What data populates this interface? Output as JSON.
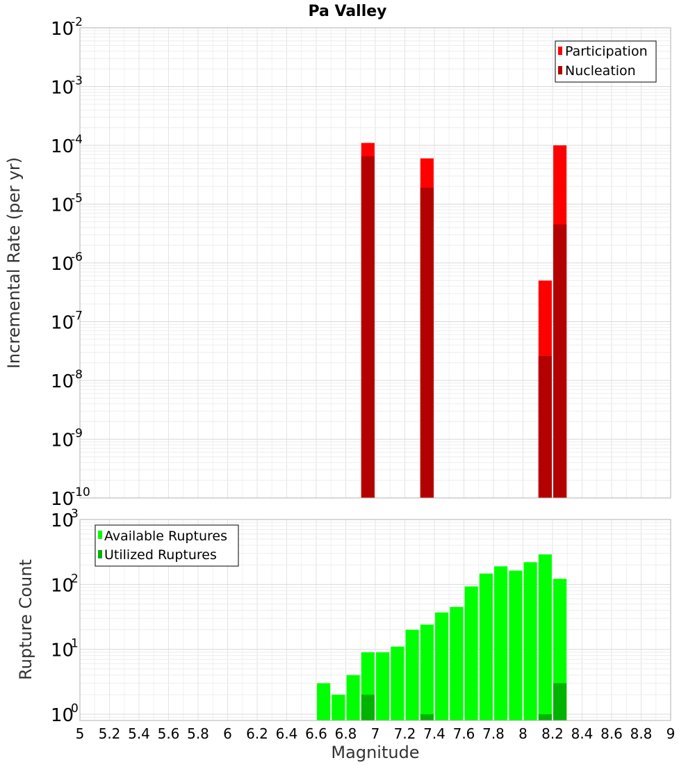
{
  "chart_data": [
    {
      "type": "bar",
      "title": "Pa Valley",
      "ylabel": "Incremental Rate (per yr)",
      "xlabel": "",
      "y_scale": "log",
      "ylim": [
        1e-10,
        0.01
      ],
      "xlim": [
        5,
        9
      ],
      "y_tick_exponents": [
        -2,
        -3,
        -4,
        -5,
        -6,
        -7,
        -8,
        -9,
        -10
      ],
      "legend": {
        "placement": "top-right",
        "entries": [
          {
            "label": "Participation",
            "color": "#ff0000"
          },
          {
            "label": "Nucleation",
            "color": "#b30000"
          }
        ]
      },
      "bar_width": 0.09,
      "series": [
        {
          "name": "Participation",
          "color": "#ff0000",
          "x": [
            6.95,
            7.35,
            8.15,
            8.25
          ],
          "values": [
            0.00011,
            6e-05,
            5e-07,
            0.0001
          ]
        },
        {
          "name": "Nucleation",
          "color": "#b30000",
          "x": [
            6.95,
            7.35,
            8.15,
            8.25
          ],
          "values": [
            6.5e-05,
            1.9e-05,
            2.6e-08,
            4.5e-06
          ]
        }
      ]
    },
    {
      "type": "bar",
      "title": "",
      "ylabel": "Rupture Count",
      "xlabel": "Magnitude",
      "y_scale": "log",
      "ylim": [
        0.8,
        1000
      ],
      "xlim": [
        5,
        9
      ],
      "y_tick_exponents": [
        3,
        2,
        1,
        0
      ],
      "x_ticks": [
        "5",
        "5.2",
        "5.4",
        "5.6",
        "5.8",
        "6",
        "6.2",
        "6.4",
        "6.6",
        "6.8",
        "7",
        "7.2",
        "7.4",
        "7.6",
        "7.8",
        "8",
        "8.2",
        "8.4",
        "8.6",
        "8.8",
        "9"
      ],
      "legend": {
        "placement": "top-left",
        "entries": [
          {
            "label": "Available Ruptures",
            "color": "#00ff00"
          },
          {
            "label": "Utilized Ruptures",
            "color": "#00b300"
          }
        ]
      },
      "bar_width": 0.09,
      "series": [
        {
          "name": "Available Ruptures",
          "color": "#00ff00",
          "x": [
            6.65,
            6.75,
            6.85,
            6.95,
            7.05,
            7.15,
            7.25,
            7.35,
            7.45,
            7.55,
            7.65,
            7.75,
            7.85,
            7.95,
            8.05,
            8.15,
            8.25
          ],
          "values": [
            3,
            2,
            4,
            9,
            9,
            11,
            20,
            24,
            37,
            45,
            93,
            147,
            190,
            163,
            220,
            290,
            122
          ]
        },
        {
          "name": "Utilized Ruptures",
          "color": "#00b300",
          "x": [
            6.95,
            7.35,
            8.15,
            8.25
          ],
          "values": [
            2,
            1,
            1,
            3
          ]
        }
      ]
    }
  ]
}
